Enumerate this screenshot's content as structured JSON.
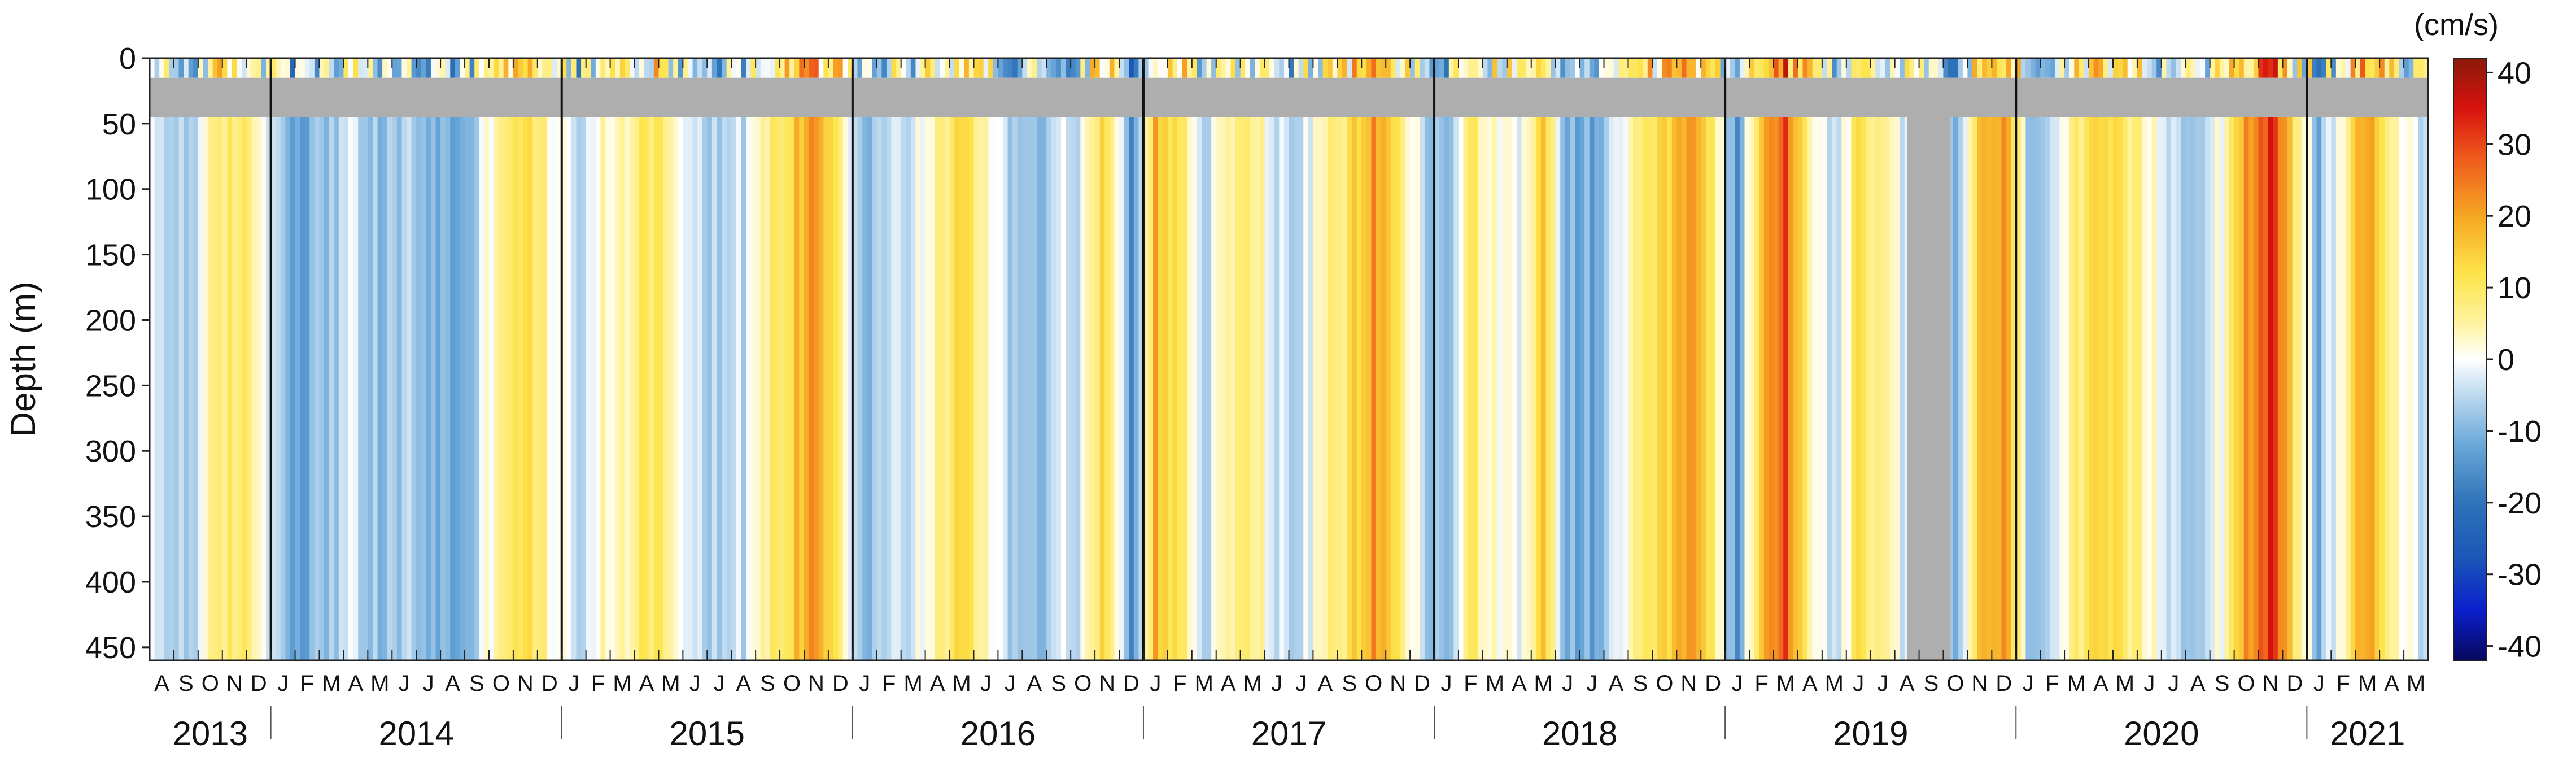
{
  "chart_data": {
    "type": "heatmap",
    "title": "",
    "ylabel": "Depth (m)",
    "xlabel": "",
    "colorbar_unit": "(cm/s)",
    "x_start": "2013-08",
    "x_end": "2021-06",
    "ylim": [
      0,
      460
    ],
    "y_ticks": [
      0,
      50,
      100,
      150,
      200,
      250,
      300,
      350,
      400,
      450
    ],
    "colorbar_ticks": [
      40,
      30,
      20,
      10,
      0,
      -10,
      -20,
      -30,
      -40
    ],
    "colorbar_range": [
      -42,
      42
    ],
    "colorscale": [
      [
        -42,
        "#08085e"
      ],
      [
        -35,
        "#0a1fcc"
      ],
      [
        -28,
        "#1a55b8"
      ],
      [
        -20,
        "#2f73b8"
      ],
      [
        -12,
        "#6aa7d9"
      ],
      [
        -5,
        "#bcd9ef"
      ],
      [
        0,
        "#ffffff"
      ],
      [
        5,
        "#fff3a0"
      ],
      [
        12,
        "#fde44a"
      ],
      [
        20,
        "#f6a623"
      ],
      [
        28,
        "#ef5b1c"
      ],
      [
        35,
        "#d7120e"
      ],
      [
        42,
        "#8a1a0a"
      ]
    ],
    "month_labels": [
      "A",
      "S",
      "O",
      "N",
      "D",
      "J",
      "F",
      "M",
      "A",
      "M",
      "J",
      "J",
      "A",
      "S",
      "O",
      "N",
      "D",
      "J",
      "F",
      "M",
      "A",
      "M",
      "J",
      "J",
      "A",
      "S",
      "O",
      "N",
      "D",
      "J",
      "F",
      "M",
      "A",
      "M",
      "J",
      "J",
      "A",
      "S",
      "O",
      "N",
      "D",
      "J",
      "F",
      "M",
      "A",
      "M",
      "J",
      "J",
      "A",
      "S",
      "O",
      "N",
      "D",
      "J",
      "F",
      "M",
      "A",
      "M",
      "J",
      "J",
      "A",
      "S",
      "O",
      "N",
      "D",
      "J",
      "F",
      "M",
      "A",
      "M",
      "J",
      "J",
      "A",
      "S",
      "O",
      "N",
      "D",
      "J",
      "F",
      "M",
      "A",
      "M",
      "J",
      "J",
      "A",
      "S",
      "O",
      "N",
      "D",
      "J",
      "F",
      "M",
      "A",
      "M"
    ],
    "years": [
      {
        "label": "2013",
        "start_month": 0,
        "end_month": 5
      },
      {
        "label": "2014",
        "start_month": 5,
        "end_month": 17
      },
      {
        "label": "2015",
        "start_month": 17,
        "end_month": 29
      },
      {
        "label": "2016",
        "start_month": 29,
        "end_month": 41
      },
      {
        "label": "2017",
        "start_month": 41,
        "end_month": 53
      },
      {
        "label": "2018",
        "start_month": 53,
        "end_month": 65
      },
      {
        "label": "2019",
        "start_month": 65,
        "end_month": 77
      },
      {
        "label": "2020",
        "start_month": 77,
        "end_month": 89
      },
      {
        "label": "2021",
        "start_month": 89,
        "end_month": 94
      }
    ],
    "missing_data": [
      {
        "depth_from": 15,
        "depth_to": 45,
        "month_from": 0,
        "month_to": 94
      },
      {
        "depth_from": 45,
        "depth_to": 460,
        "month_from": 72.5,
        "month_to": 74.3
      }
    ],
    "velocity_bands_cm_s": [
      {
        "month": 0.5,
        "value": -4
      },
      {
        "month": 1.5,
        "value": -7
      },
      {
        "month": 2.5,
        "value": 3
      },
      {
        "month": 3.5,
        "value": 10
      },
      {
        "month": 4.5,
        "value": 4
      },
      {
        "month": 5.5,
        "value": -8
      },
      {
        "month": 6.5,
        "value": -12
      },
      {
        "month": 7.5,
        "value": -6
      },
      {
        "month": 8.5,
        "value": -4
      },
      {
        "month": 9.5,
        "value": -10
      },
      {
        "month": 10.5,
        "value": -6
      },
      {
        "month": 11.5,
        "value": -9
      },
      {
        "month": 12.5,
        "value": -12
      },
      {
        "month": 13.5,
        "value": -7
      },
      {
        "month": 14.5,
        "value": 10
      },
      {
        "month": 15.5,
        "value": 12
      },
      {
        "month": 16.5,
        "value": 4
      },
      {
        "month": 17.5,
        "value": -5
      },
      {
        "month": 18.5,
        "value": 2
      },
      {
        "month": 19.5,
        "value": 4
      },
      {
        "month": 20.5,
        "value": 12
      },
      {
        "month": 21.5,
        "value": 6
      },
      {
        "month": 22.5,
        "value": -3
      },
      {
        "month": 23.5,
        "value": -6
      },
      {
        "month": 24.5,
        "value": -4
      },
      {
        "month": 25.5,
        "value": 6
      },
      {
        "month": 26.5,
        "value": 14
      },
      {
        "month": 27.5,
        "value": 24
      },
      {
        "month": 28.5,
        "value": 8
      },
      {
        "month": 29.5,
        "value": -9
      },
      {
        "month": 30.5,
        "value": -5
      },
      {
        "month": 31.5,
        "value": -3
      },
      {
        "month": 32.5,
        "value": 6
      },
      {
        "month": 33.5,
        "value": 12
      },
      {
        "month": 34.5,
        "value": 5
      },
      {
        "month": 35.5,
        "value": -6
      },
      {
        "month": 36.5,
        "value": -8
      },
      {
        "month": 37.5,
        "value": -4
      },
      {
        "month": 38.5,
        "value": -2
      },
      {
        "month": 39.5,
        "value": 14
      },
      {
        "month": 40.5,
        "value": -14
      },
      {
        "month": 41.5,
        "value": 18
      },
      {
        "month": 42.5,
        "value": 10
      },
      {
        "month": 43.5,
        "value": -5
      },
      {
        "month": 44.5,
        "value": 4
      },
      {
        "month": 45.5,
        "value": 8
      },
      {
        "month": 46.5,
        "value": -3
      },
      {
        "month": 47.5,
        "value": -5
      },
      {
        "month": 48.5,
        "value": 4
      },
      {
        "month": 49.5,
        "value": 10
      },
      {
        "month": 50.5,
        "value": 22
      },
      {
        "month": 51.5,
        "value": 10
      },
      {
        "month": 52.5,
        "value": -4
      },
      {
        "month": 53.5,
        "value": -12
      },
      {
        "month": 54.5,
        "value": 10
      },
      {
        "month": 55.5,
        "value": 3
      },
      {
        "month": 56.5,
        "value": -4
      },
      {
        "month": 57.5,
        "value": 14
      },
      {
        "month": 58.5,
        "value": -10
      },
      {
        "month": 59.5,
        "value": -12
      },
      {
        "month": 60.5,
        "value": -5
      },
      {
        "month": 61.5,
        "value": 6
      },
      {
        "month": 62.5,
        "value": 12
      },
      {
        "month": 63.5,
        "value": 22
      },
      {
        "month": 64.5,
        "value": 8
      },
      {
        "month": 65.5,
        "value": -14
      },
      {
        "month": 66.5,
        "value": 16
      },
      {
        "month": 67.5,
        "value": 30
      },
      {
        "month": 68.5,
        "value": 6
      },
      {
        "month": 69.5,
        "value": -5
      },
      {
        "month": 70.5,
        "value": 10
      },
      {
        "month": 71.5,
        "value": 4
      },
      {
        "month": 72.5,
        "value": -3
      },
      {
        "month": 73.5,
        "value": -3
      },
      {
        "month": 74.5,
        "value": -10
      },
      {
        "month": 75.5,
        "value": 14
      },
      {
        "month": 76.5,
        "value": 22
      },
      {
        "month": 77.5,
        "value": -6
      },
      {
        "month": 78.5,
        "value": -4
      },
      {
        "month": 79.5,
        "value": 6
      },
      {
        "month": 80.5,
        "value": 12
      },
      {
        "month": 81.5,
        "value": 8
      },
      {
        "month": 82.5,
        "value": 3
      },
      {
        "month": 83.5,
        "value": -4
      },
      {
        "month": 84.5,
        "value": -5
      },
      {
        "month": 85.5,
        "value": 2
      },
      {
        "month": 86.5,
        "value": 22
      },
      {
        "month": 87.5,
        "value": 32
      },
      {
        "month": 88.5,
        "value": 10
      },
      {
        "month": 89.5,
        "value": -10
      },
      {
        "month": 90.5,
        "value": 4
      },
      {
        "month": 91.5,
        "value": 22
      },
      {
        "month": 92.5,
        "value": 8
      },
      {
        "month": 93.5,
        "value": -4
      }
    ]
  }
}
